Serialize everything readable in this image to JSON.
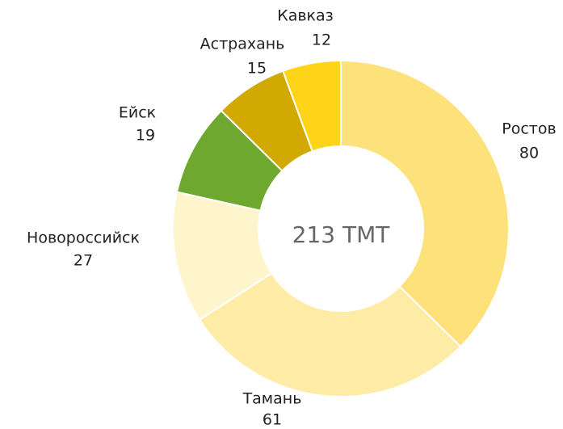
{
  "chart_data": {
    "type": "donut",
    "center_label": "213 ТМТ",
    "categories": [
      "Ростов",
      "Тамань",
      "Новороссийск",
      "Ейск",
      "Астрахань",
      "Кавказ"
    ],
    "values": [
      80,
      61,
      27,
      19,
      15,
      12
    ],
    "colors": [
      "#fde27b",
      "#feeca6",
      "#fff5cc",
      "#6fa82e",
      "#d1a902",
      "#fed419"
    ]
  }
}
